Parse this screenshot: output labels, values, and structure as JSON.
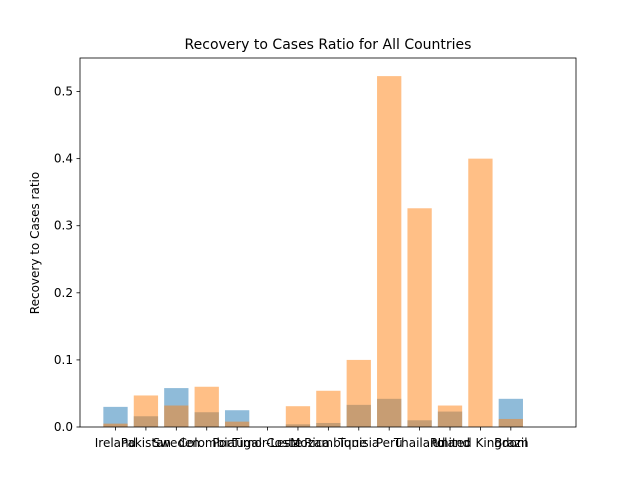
{
  "chart_data": {
    "type": "bar",
    "title": "Recovery to Cases Ratio for All Countries",
    "xlabel": "",
    "ylabel": "Recovery to Cases ratio",
    "ylim": [
      0,
      0.55
    ],
    "yticks": [
      0.0,
      0.1,
      0.2,
      0.3,
      0.4,
      0.5
    ],
    "ytick_labels": [
      "0.0",
      "0.1",
      "0.2",
      "0.3",
      "0.4",
      "0.5"
    ],
    "grid": false,
    "legend": "none",
    "categories": [
      "Ireland",
      "Pakistan",
      "Sweden",
      "Colombia",
      "Portugal",
      "Timor-Leste",
      "Costa Rica",
      "Mozambique",
      "Tunisia",
      "Peru",
      "Thailand",
      "Poland",
      "United Kingdom",
      "Brazil"
    ],
    "series": [
      {
        "color": "#1f77b4",
        "opacity": 0.5,
        "values": [
          0.03,
          0.016,
          0.058,
          0.022,
          0.025,
          0.0,
          0.004,
          0.006,
          0.033,
          0.042,
          0.01,
          0.023,
          0.0,
          0.042
        ]
      },
      {
        "color": "#ff7f0e",
        "opacity": 0.5,
        "values": [
          0.005,
          0.047,
          0.032,
          0.06,
          0.008,
          0.0,
          0.031,
          0.054,
          0.1,
          0.523,
          0.326,
          0.032,
          0.4,
          0.012
        ]
      }
    ]
  }
}
